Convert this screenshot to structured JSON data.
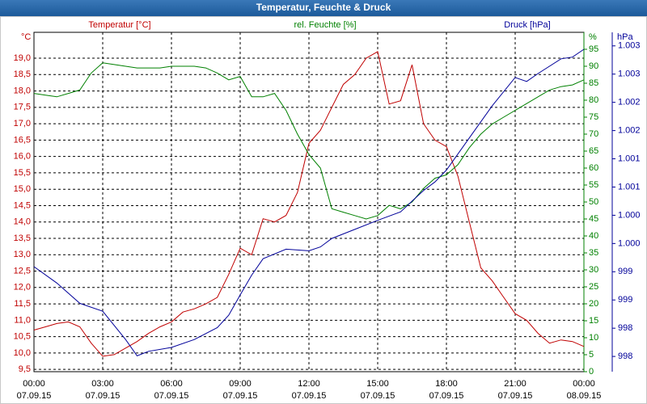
{
  "chart_data": {
    "type": "line",
    "title": "Temperatur, Feuchte & Druck",
    "xlim": [
      0,
      24
    ],
    "xticks": [
      {
        "value": 0,
        "label": "00:00"
      },
      {
        "value": 3,
        "label": "03:00"
      },
      {
        "value": 6,
        "label": "06:00"
      },
      {
        "value": 9,
        "label": "09:00"
      },
      {
        "value": 12,
        "label": "12:00"
      },
      {
        "value": 15,
        "label": "15:00"
      },
      {
        "value": 18,
        "label": "18:00"
      },
      {
        "value": 21,
        "label": "21:00"
      },
      {
        "value": 24,
        "label": "00:00"
      }
    ],
    "xtick_dates": [
      "07.09.15",
      "07.09.15",
      "07.09.15",
      "07.09.15",
      "07.09.15",
      "07.09.15",
      "07.09.15",
      "07.09.15",
      "08.09.15"
    ],
    "y_unit": "°C",
    "y2_unit": "%",
    "y3_unit": "hPa",
    "ylim": [
      9.43,
      19.79
    ],
    "yticks": [
      {
        "value": 9.5,
        "label": "9,5"
      },
      {
        "value": 10,
        "label": "10,0"
      },
      {
        "value": 10.5,
        "label": "10,5"
      },
      {
        "value": 11,
        "label": "11,0"
      },
      {
        "value": 11.5,
        "label": "11,5"
      },
      {
        "value": 12,
        "label": "12,0"
      },
      {
        "value": 12.5,
        "label": "12,5"
      },
      {
        "value": 13,
        "label": "13,0"
      },
      {
        "value": 13.5,
        "label": "13,5"
      },
      {
        "value": 14,
        "label": "14,0"
      },
      {
        "value": 14.5,
        "label": "14,5"
      },
      {
        "value": 15,
        "label": "15,0"
      },
      {
        "value": 15.5,
        "label": "15,5"
      },
      {
        "value": 16,
        "label": "16,0"
      },
      {
        "value": 16.5,
        "label": "16,5"
      },
      {
        "value": 17,
        "label": "17,0"
      },
      {
        "value": 17.5,
        "label": "17,5"
      },
      {
        "value": 18,
        "label": "18,0"
      },
      {
        "value": 18.5,
        "label": "18,5"
      },
      {
        "value": 19,
        "label": "19,0"
      }
    ],
    "y2lim": [
      0,
      100
    ],
    "y2ticks": [
      0,
      5,
      10,
      15,
      20,
      25,
      30,
      35,
      40,
      45,
      50,
      55,
      60,
      65,
      70,
      75,
      80,
      85,
      90,
      95
    ],
    "y3lim": [
      997.48,
      1003.49
    ],
    "y3ticks": [
      {
        "value": 997.75,
        "label": "998"
      },
      {
        "value": 998.25,
        "label": "998"
      },
      {
        "value": 998.75,
        "label": "999"
      },
      {
        "value": 999.25,
        "label": "999"
      },
      {
        "value": 999.75,
        "label": "1.000"
      },
      {
        "value": 1000.25,
        "label": "1.000"
      },
      {
        "value": 1000.75,
        "label": "1.001"
      },
      {
        "value": 1001.25,
        "label": "1.001"
      },
      {
        "value": 1001.75,
        "label": "1.002"
      },
      {
        "value": 1002.25,
        "label": "1.002"
      },
      {
        "value": 1002.75,
        "label": "1.003"
      },
      {
        "value": 1003.25,
        "label": "1.003"
      }
    ],
    "grid": true,
    "series": [
      {
        "name": "Temperatur [°C]",
        "color": "#c00000",
        "axis": "y",
        "x": [
          0,
          0.5,
          1,
          1.5,
          2,
          2.5,
          3,
          3.5,
          4,
          4.5,
          5,
          5.5,
          6,
          6.5,
          7,
          7.5,
          8,
          8.5,
          9,
          9.5,
          10,
          10.5,
          11,
          11.5,
          12,
          12.5,
          13,
          13.5,
          14,
          14.5,
          15,
          15.5,
          16,
          16.5,
          17,
          17.5,
          18,
          18.5,
          19,
          19.5,
          20,
          20.5,
          21,
          21.5,
          22,
          22.5,
          23,
          23.5,
          24
        ],
        "values": [
          10.7,
          10.8,
          10.9,
          10.95,
          10.8,
          10.3,
          9.9,
          9.95,
          10.15,
          10.35,
          10.6,
          10.8,
          10.95,
          11.25,
          11.35,
          11.5,
          11.7,
          12.4,
          13.2,
          13.0,
          14.1,
          14.0,
          14.2,
          14.9,
          16.4,
          16.8,
          17.5,
          18.2,
          18.5,
          19.0,
          19.2,
          17.6,
          17.7,
          18.8,
          17.0,
          16.5,
          16.3,
          15.4,
          14.0,
          12.6,
          12.2,
          11.7,
          11.2,
          11.0,
          10.6,
          10.3,
          10.4,
          10.35,
          10.2
        ]
      },
      {
        "name": "rel. Feuchte [%]",
        "color": "#008000",
        "axis": "y2",
        "x": [
          0,
          0.5,
          1,
          1.5,
          2,
          2.5,
          3,
          3.5,
          4,
          4.5,
          5,
          5.5,
          6,
          6.5,
          7,
          7.5,
          8,
          8.5,
          9,
          9.5,
          10,
          10.5,
          11,
          11.5,
          12,
          12.5,
          13,
          13.5,
          14,
          14.5,
          15,
          15.5,
          16,
          16.5,
          17,
          17.5,
          18,
          18.5,
          19,
          19.5,
          20,
          20.5,
          21,
          21.5,
          22,
          22.5,
          23,
          23.5,
          24
        ],
        "values": [
          82,
          81.5,
          81,
          82,
          83,
          88,
          91,
          90.5,
          90,
          89.5,
          89.5,
          89.5,
          90,
          90,
          90,
          89.5,
          88,
          86,
          87,
          81,
          81,
          82,
          77,
          70,
          64,
          60,
          48,
          47,
          46,
          45,
          46,
          49,
          48,
          50,
          54,
          57,
          58,
          61,
          66,
          70,
          73,
          75,
          77,
          79,
          81,
          83,
          84,
          84.5,
          86
        ]
      },
      {
        "name": "Druck [hPa]",
        "color": "#000099",
        "axis": "y3",
        "x": [
          0,
          1,
          2,
          3,
          4,
          4.5,
          5,
          6,
          7,
          8,
          8.5,
          9,
          9.5,
          10,
          11,
          12,
          12.5,
          13,
          14,
          15,
          16,
          17,
          17.5,
          18,
          19,
          20,
          21,
          21.5,
          22,
          23,
          23.5,
          24
        ],
        "values": [
          999.34,
          999.05,
          998.69,
          998.55,
          998.05,
          997.76,
          997.84,
          997.91,
          998.05,
          998.26,
          998.48,
          998.84,
          999.19,
          999.48,
          999.65,
          999.62,
          999.69,
          999.84,
          1000.0,
          1000.16,
          1000.31,
          1000.69,
          1000.84,
          1001.05,
          1001.62,
          1002.19,
          1002.69,
          1002.62,
          1002.76,
          1003.02,
          1003.05,
          1003.19
        ]
      }
    ]
  }
}
